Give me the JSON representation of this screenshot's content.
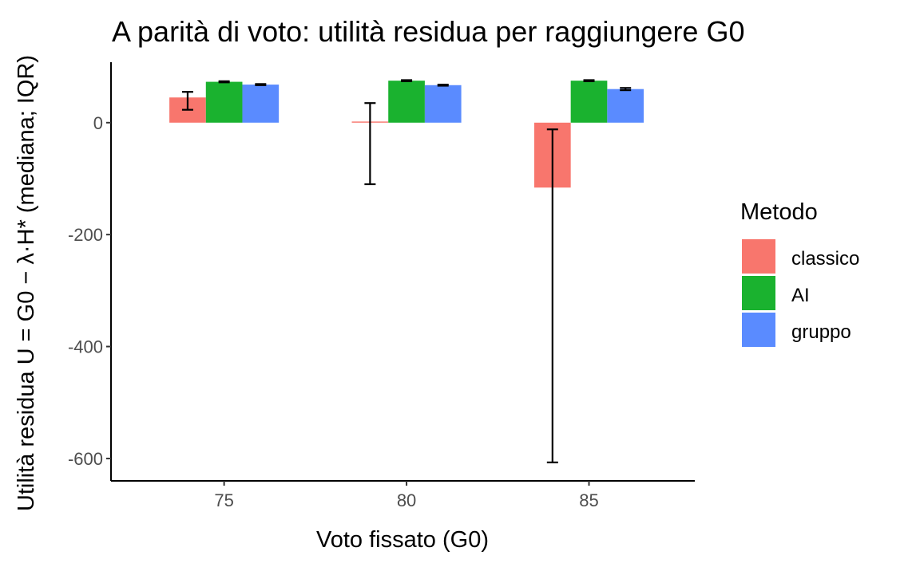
{
  "chart_data": {
    "type": "bar",
    "title": "A parità di voto: utilità residua per raggiungere G0",
    "xlabel": "Voto fissato (G0)",
    "ylabel": "Utilità residua U = G0 − λ·H* (mediana; IQR)",
    "categories": [
      "75",
      "80",
      "85"
    ],
    "x_values": [
      75,
      80,
      85
    ],
    "xlim": [
      71.9,
      87.9
    ],
    "ylim": [
      -640,
      108
    ],
    "y_ticks": [
      0,
      -200,
      -400,
      -600
    ],
    "y_tick_labels": [
      "0",
      "-200",
      "-400",
      "-600"
    ],
    "grid": false,
    "legend": {
      "title": "Metodo",
      "position": "right"
    },
    "series": [
      {
        "name": "classico",
        "color": "#F8766D",
        "values": [
          45,
          2,
          -116
        ],
        "err_low": [
          23,
          -110,
          -607
        ],
        "err_high": [
          55,
          35,
          -12
        ]
      },
      {
        "name": "AI",
        "color": "#1AB22F",
        "values": [
          73,
          75,
          75
        ],
        "err_low": [
          72,
          74,
          74
        ],
        "err_high": [
          74,
          76,
          76
        ]
      },
      {
        "name": "gruppo",
        "color": "#5A8BFF",
        "values": [
          68,
          67,
          60
        ],
        "err_low": [
          67,
          66,
          58
        ],
        "err_high": [
          69,
          68,
          62
        ]
      }
    ]
  }
}
